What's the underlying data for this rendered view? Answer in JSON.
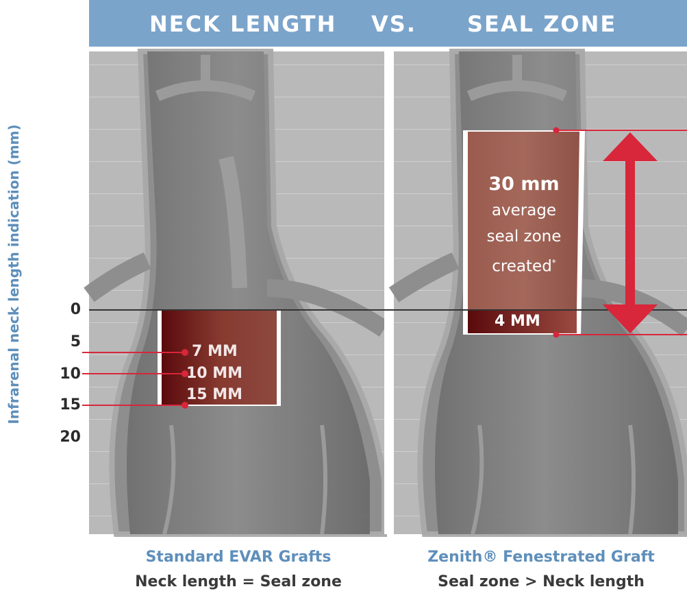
{
  "header": {
    "left": "NECK LENGTH",
    "vs": "VS.",
    "right": "SEAL ZONE"
  },
  "y_axis": {
    "label": "Infrarenal neck length indication (mm)",
    "ticks": [
      "0",
      "5",
      "10",
      "15",
      "20"
    ]
  },
  "left_panel": {
    "measurements": [
      "7 MM",
      "10 MM",
      "15 MM"
    ],
    "caption_title": "Standard EVAR Grafts",
    "caption_subtitle": "Neck length = Seal zone"
  },
  "right_panel": {
    "seal_value": "30 mm",
    "seal_desc_1": "average",
    "seal_desc_2": "seal zone",
    "seal_desc_3": "created",
    "seal_footnote": "*",
    "neck_value": "4 MM",
    "caption_title": "Zenith® Fenestrated Graft",
    "caption_subtitle": "Seal zone > Neck length"
  },
  "colors": {
    "header_bg": "#7ba4cb",
    "axis_label": "#5e8fbb",
    "accent_red": "#d8263a",
    "seal_dark": "#6a0f12"
  }
}
